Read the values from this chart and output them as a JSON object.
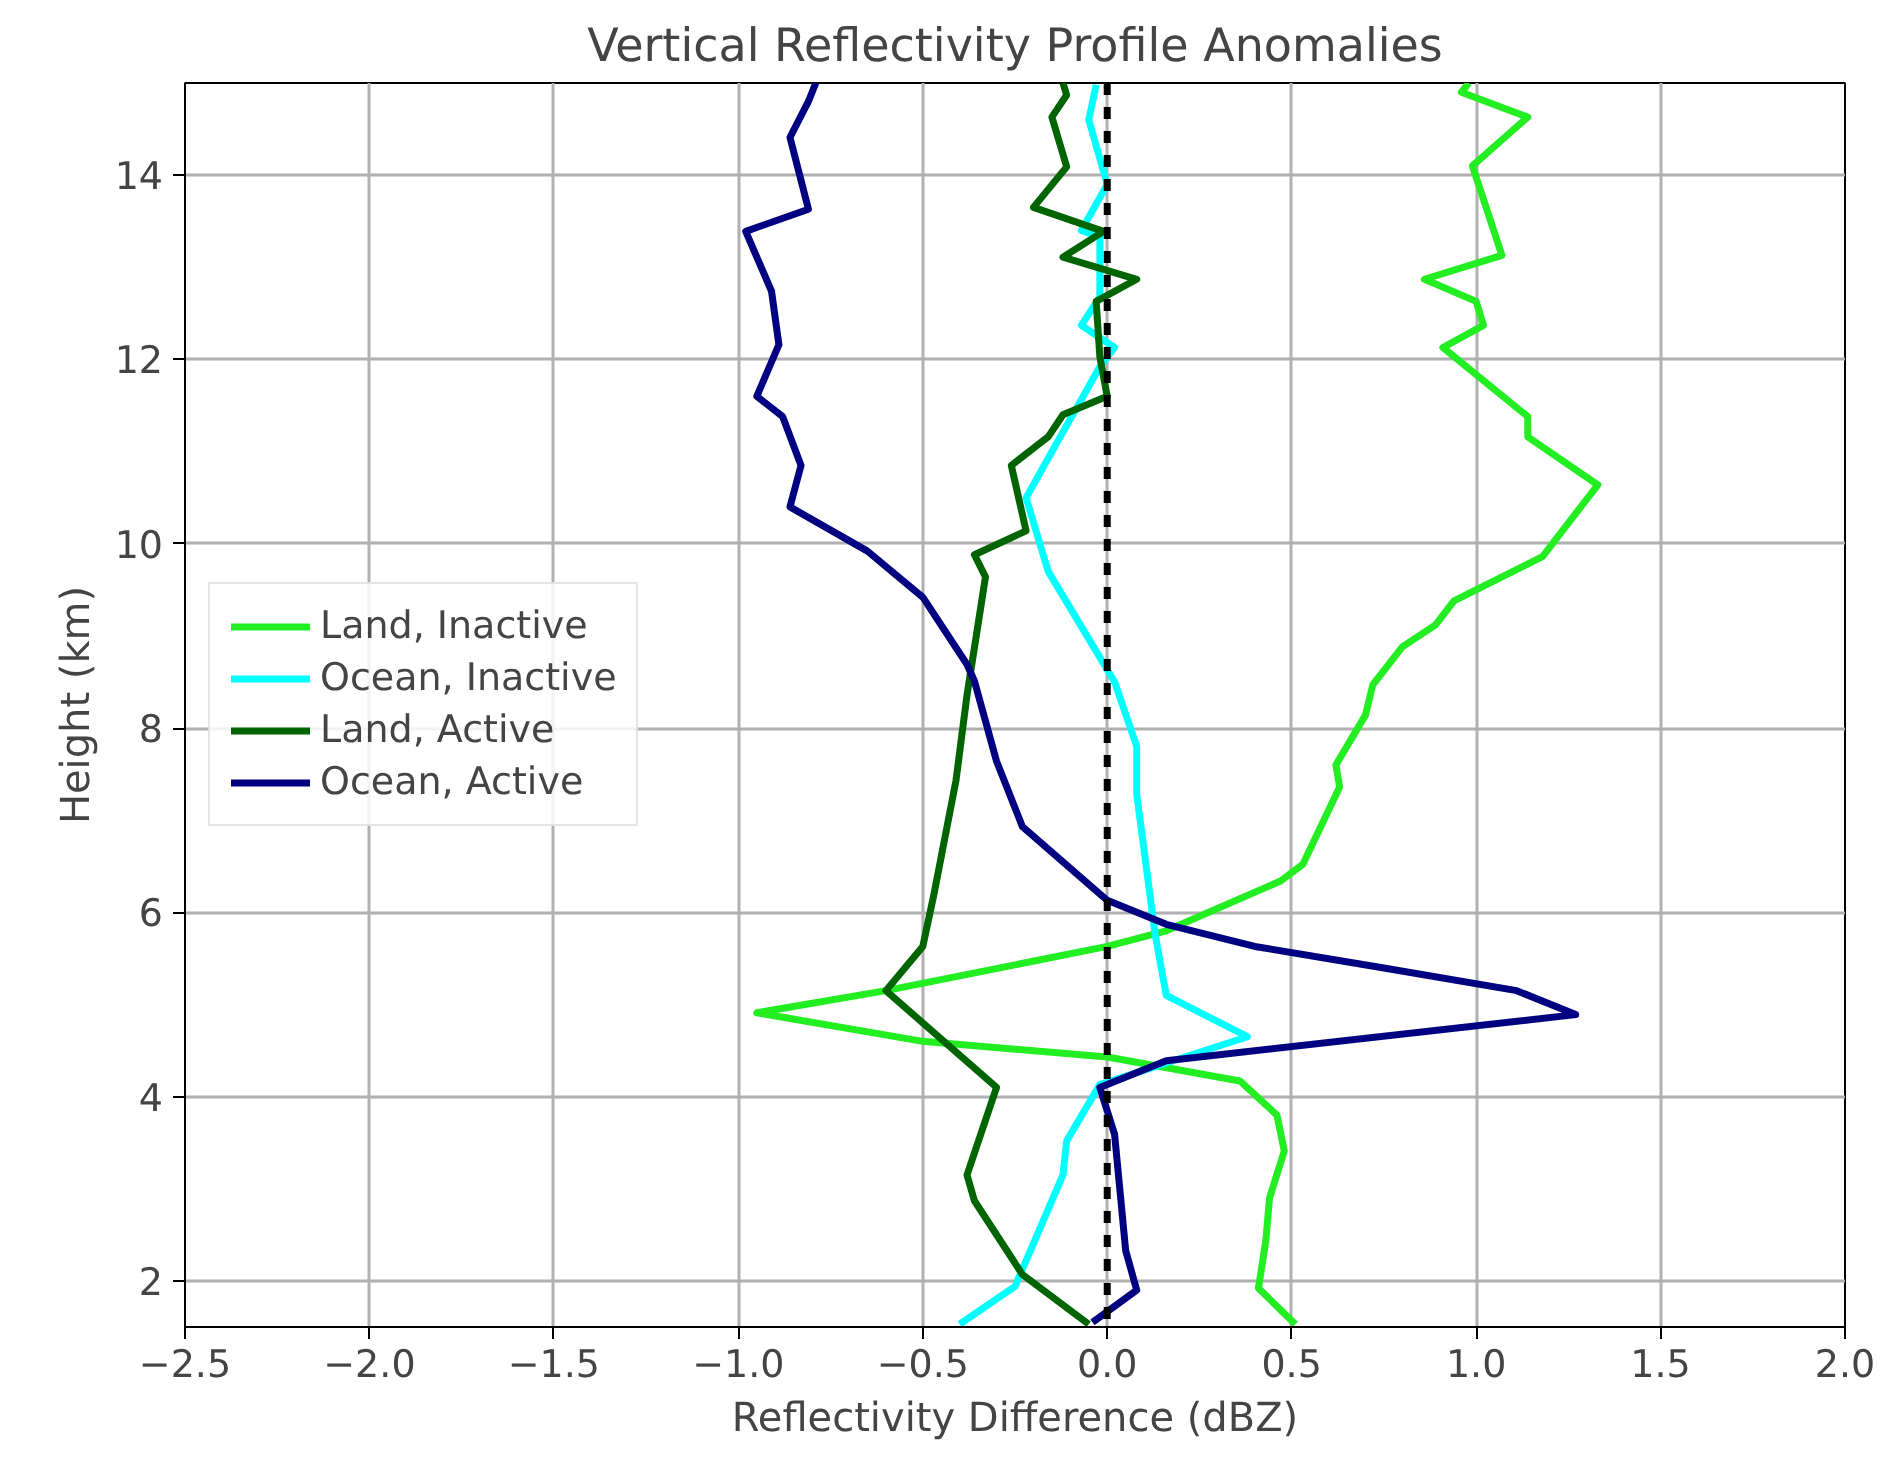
{
  "chart_data": {
    "type": "line",
    "title": "Vertical Reflectivity Profile Anomalies",
    "xlabel": "Reflectivity Difference (dBZ)",
    "ylabel": "Height (km)",
    "xlim": [
      -2.5,
      2.0
    ],
    "ylim": [
      1.5,
      15
    ],
    "xticks": [
      {
        "value": -2.5,
        "label": "−2.5"
      },
      {
        "value": -2.0,
        "label": "−2.0"
      },
      {
        "value": -1.5,
        "label": "−1.5"
      },
      {
        "value": -1.0,
        "label": "−1.0"
      },
      {
        "value": -0.5,
        "label": "−0.5"
      },
      {
        "value": 0,
        "label": "0.0"
      },
      0.5,
      {
        "value": 1,
        "label": "1.0"
      },
      1.5,
      {
        "value": 2,
        "label": "2.0"
      }
    ],
    "yticks": [
      2,
      4,
      6,
      8,
      10,
      12,
      14
    ],
    "grid": true,
    "legend": "left",
    "line_style": "solid",
    "marker": "none",
    "ref_lines": [
      {
        "axis": "x",
        "value": 0,
        "color": "#000000",
        "line_style": "dashed"
      }
    ],
    "series": [
      {
        "name": "Land, Inactive",
        "color": "#22ee22",
        "x": [
          0.51,
          0.41,
          0.43,
          0.44,
          0.48,
          0.46,
          0.36,
          0.0,
          -0.5,
          -0.95,
          -0.6,
          0.0,
          0.16,
          0.47,
          0.53,
          0.63,
          0.62,
          0.7,
          0.72,
          0.8,
          0.89,
          0.94,
          1.18,
          1.33,
          1.14,
          1.14,
          0.91,
          1.02,
          1.0,
          0.86,
          1.07,
          0.99,
          1.14,
          0.96,
          0.98
        ],
        "values": [
          1.53,
          1.92,
          2.44,
          2.9,
          3.41,
          3.8,
          4.17,
          4.43,
          4.6,
          4.91,
          5.15,
          5.63,
          5.8,
          6.34,
          6.52,
          7.36,
          7.6,
          8.14,
          8.47,
          8.88,
          9.12,
          9.38,
          9.86,
          10.64,
          11.16,
          11.38,
          12.13,
          12.37,
          12.63,
          12.87,
          13.13,
          14.1,
          14.63,
          14.9,
          15.0
        ]
      },
      {
        "name": "Ocean, Inactive",
        "color": "#00ffff",
        "x": [
          -0.4,
          -0.25,
          -0.12,
          -0.11,
          -0.02,
          0.38,
          0.16,
          0.13,
          0.08,
          0.08,
          0.02,
          -0.16,
          -0.22,
          -0.14,
          -0.02,
          0.02,
          -0.07,
          -0.02,
          -0.02,
          -0.07,
          0.0,
          -0.05,
          -0.03
        ],
        "values": [
          1.53,
          1.94,
          3.15,
          3.52,
          4.13,
          4.65,
          5.1,
          5.76,
          7.28,
          7.8,
          8.5,
          9.7,
          10.5,
          11.07,
          11.92,
          12.13,
          12.37,
          12.68,
          13.33,
          13.4,
          13.9,
          14.6,
          14.98
        ]
      },
      {
        "name": "Land, Active",
        "color": "#006400",
        "x": [
          -0.05,
          -0.23,
          -0.36,
          -0.38,
          -0.3,
          -0.6,
          -0.5,
          -0.47,
          -0.41,
          -0.38,
          -0.33,
          -0.36,
          -0.22,
          -0.26,
          -0.16,
          -0.12,
          0.0,
          -0.02,
          -0.03,
          0.08,
          -0.12,
          -0.01,
          -0.2,
          -0.11,
          -0.15,
          -0.11,
          -0.12
        ],
        "values": [
          1.53,
          2.07,
          2.87,
          3.15,
          4.1,
          5.15,
          5.63,
          6.19,
          7.43,
          8.36,
          9.64,
          9.88,
          10.14,
          10.85,
          11.16,
          11.4,
          11.6,
          12.03,
          12.63,
          12.87,
          13.11,
          13.39,
          13.65,
          14.09,
          14.63,
          14.87,
          15.0
        ]
      },
      {
        "name": "Ocean, Active",
        "color": "#000080",
        "x": [
          -0.04,
          0.08,
          0.05,
          0.02,
          -0.02,
          0.16,
          1.27,
          1.11,
          0.73,
          0.4,
          0.16,
          0.0,
          -0.23,
          -0.3,
          -0.36,
          -0.38,
          -0.5,
          -0.65,
          -0.86,
          -0.83,
          -0.88,
          -0.95,
          -0.89,
          -0.91,
          -0.98,
          -0.81,
          -0.86,
          -0.81,
          -0.79
        ],
        "values": [
          1.55,
          1.9,
          2.33,
          3.59,
          4.1,
          4.39,
          4.89,
          5.15,
          5.41,
          5.63,
          5.87,
          6.13,
          6.93,
          7.64,
          8.51,
          8.69,
          9.42,
          9.92,
          10.4,
          10.85,
          11.38,
          11.6,
          12.16,
          12.74,
          13.39,
          13.63,
          14.41,
          14.8,
          15.0
        ]
      }
    ]
  }
}
